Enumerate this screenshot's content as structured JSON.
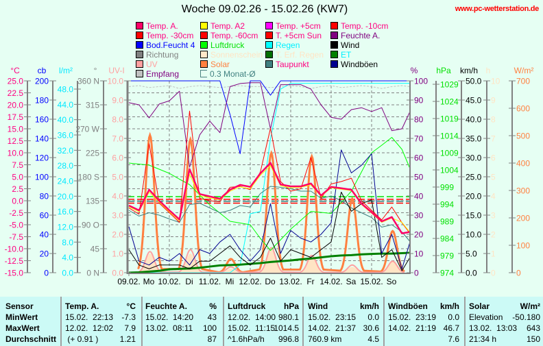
{
  "title": "Woche 09.02.26 - 15.02.26 (KW7)",
  "website": "www.pc-wetterstation.de",
  "legend": [
    {
      "label": "Temp. A.",
      "box": "#ff0066",
      "color": "#ff0080"
    },
    {
      "label": "Temp. A2",
      "box": "#ffff00",
      "color": "#ff0080"
    },
    {
      "label": "Temp. +5cm",
      "box": "#ff00ff",
      "color": "#ff0080"
    },
    {
      "label": "Temp. -10cm",
      "box": "#ff0000",
      "color": "#ff0080"
    },
    {
      "label": "Temp. -30cm",
      "box": "#ff0000",
      "color": "#ff0080"
    },
    {
      "label": "Temp. -60cm",
      "box": "#ff0000",
      "color": "#ff0080"
    },
    {
      "label": "T. +5cm Sun",
      "box": "#ff0000",
      "color": "#ff0080"
    },
    {
      "label": "Feuchte A.",
      "box": "#800080",
      "color": "#800080"
    },
    {
      "label": "Bod.Feucht 4",
      "box": "#0000ff",
      "color": "#0000ff"
    },
    {
      "label": "Luftdruck",
      "box": "#00ff00",
      "color": "#00e000"
    },
    {
      "label": "Regen",
      "box": "#00ffff",
      "color": "#00f0ff"
    },
    {
      "label": "Wind",
      "box": "#000000",
      "color": "#000000"
    },
    {
      "label": "Richtung",
      "box": "#808080",
      "color": "#808080"
    },
    {
      "label": "Sonnenschein",
      "box": "#ffe8c8",
      "color": "#ffe4c4"
    },
    {
      "label": "T. Erf. Regen",
      "box": "#007000",
      "color": "#ffe4c4"
    },
    {
      "label": "ET",
      "box": "#008000",
      "color": "#00f0ff"
    },
    {
      "label": "UV",
      "box": "#ffa0a0",
      "color": "#ffa0a0"
    },
    {
      "label": "Solar",
      "box": "#ff8040",
      "color": "#ff8040"
    },
    {
      "label": "Taupunkt",
      "box": "#408080",
      "color": "#ff0080"
    },
    {
      "label": "Windböen",
      "box": "#000090",
      "color": "#000000"
    },
    {
      "label": "Empfang",
      "box": "#c0c0c0",
      "color": "#800080"
    },
    {
      "label": "0.3 Monat-Ø",
      "box": "hollow",
      "color": "#408080"
    }
  ],
  "chart_data": {
    "type": "line",
    "title": "Woche 09.02.26 - 15.02.26 (KW7)",
    "x_range_hours": [
      0,
      168
    ],
    "x_step_hours": 6,
    "x_labels": [
      {
        "date": "09.02.",
        "day": "Mo"
      },
      {
        "date": "10.02.",
        "day": "Di"
      },
      {
        "date": "11.02.",
        "day": "Mi"
      },
      {
        "date": "12.02.",
        "day": "Do"
      },
      {
        "date": "13.02.",
        "day": "Fr"
      },
      {
        "date": "14.02.",
        "day": "Sa"
      },
      {
        "date": "15.02.",
        "day": "So"
      }
    ],
    "grid": true,
    "axes_left": [
      {
        "id": "temp",
        "unit": "°C",
        "color": "#ff0080",
        "range": [
          -15,
          25
        ],
        "ticks": [
          25,
          22.5,
          20,
          17.5,
          15,
          12.5,
          10,
          7.5,
          5,
          2.5,
          0,
          -2.5,
          -5,
          -7.5,
          -10,
          -12.5,
          -15
        ],
        "tick_labels": [
          "25.0",
          "22.5",
          "20.0",
          "17.5",
          "15.0",
          "12.5",
          "10.0",
          "7.5",
          "5.0",
          "2.5",
          "0.0",
          "-2.5",
          "-5.0",
          "-7.5",
          "-10.0",
          "-12.5",
          "-15.0"
        ]
      },
      {
        "id": "cb",
        "unit": "cb",
        "color": "#0000ff",
        "range": [
          0,
          200
        ],
        "ticks": [
          200,
          180,
          160,
          140,
          120,
          100,
          80,
          60,
          40,
          20,
          0
        ],
        "tick_labels": [
          "200",
          "180",
          "160",
          "140",
          "120",
          "100",
          "80",
          "60",
          "40",
          "20",
          "0"
        ]
      },
      {
        "id": "rain",
        "unit": "l/m²",
        "color": "#00e8ff",
        "range": [
          0,
          50.15
        ],
        "ticks": [
          48,
          44,
          40,
          36,
          32,
          28,
          24,
          20,
          16,
          12,
          8,
          4,
          0
        ],
        "tick_labels": [
          "48.0",
          "44.0",
          "40.0",
          "36.0",
          "32.0",
          "28.0",
          "24.0",
          "20.0",
          "16.0",
          "12.0",
          "8.0",
          "4.0",
          "0.0"
        ]
      },
      {
        "id": "dir",
        "unit": "°",
        "color": "#808080",
        "range": [
          0,
          360
        ],
        "ticks": [
          360,
          315,
          270,
          225,
          180,
          135,
          90,
          45,
          0
        ],
        "tick_labels": [
          "360 N",
          "315",
          "270 W",
          "225",
          "180 S",
          "135",
          "90  O",
          "45",
          "0   N"
        ]
      },
      {
        "id": "uv",
        "unit": "UV-I",
        "color": "#ffa0a0",
        "range": [
          0,
          10
        ],
        "ticks": [
          10,
          9,
          8,
          7,
          6,
          5,
          4,
          3,
          2,
          1,
          0
        ],
        "tick_labels": [
          "10.0",
          "9.0",
          "8.0",
          "7.0",
          "6.0",
          "5.0",
          "4.0",
          "3.0",
          "2.0",
          "1.0",
          "0.0"
        ]
      }
    ],
    "axes_right": [
      {
        "id": "hum",
        "unit": "%",
        "color": "#800080",
        "range": [
          0,
          100
        ],
        "ticks": [
          100,
          90,
          80,
          70,
          60,
          50,
          40,
          30,
          20,
          10,
          0
        ],
        "tick_labels": [
          "100",
          "90",
          "80",
          "70",
          "60",
          "50",
          "40",
          "30",
          "20",
          "10",
          "0"
        ]
      },
      {
        "id": "press",
        "unit": "hPa",
        "color": "#00e000",
        "range": [
          974,
          1030
        ],
        "ticks": [
          1029,
          1024,
          1019,
          1014,
          1009,
          1004,
          999,
          994,
          989,
          984,
          979,
          974
        ],
        "tick_labels": [
          "1029",
          "1024",
          "1019",
          "1014",
          "1009",
          "1004",
          "999",
          "994",
          "989",
          "984",
          "979",
          "974"
        ]
      },
      {
        "id": "wind",
        "unit": "km/h",
        "color": "#000000",
        "range": [
          0,
          50
        ],
        "ticks": [
          50,
          45,
          40,
          35,
          30,
          25,
          20,
          15,
          10,
          5,
          0
        ],
        "tick_labels": [
          "50.0",
          "45.0",
          "40.0",
          "35.0",
          "30.0",
          "25.0",
          "20.0",
          "15.0",
          "10.0",
          "5.0",
          "0.0"
        ]
      },
      {
        "id": "sun",
        "unit": "h",
        "color": "#ffe4c4",
        "range": [
          0,
          10
        ],
        "ticks": [
          10,
          9,
          8,
          7,
          6,
          5,
          4,
          3,
          2,
          1,
          0
        ],
        "tick_labels": [
          "10",
          "9",
          "8",
          "7",
          "6",
          "5",
          "4",
          "3",
          "2",
          "1",
          "0"
        ]
      },
      {
        "id": "solar",
        "unit": "W/m²",
        "color": "#ff8040",
        "range": [
          0,
          700
        ],
        "ticks": [
          700,
          600,
          500,
          400,
          300,
          200,
          100,
          0
        ],
        "tick_labels": [
          "700",
          "600",
          "500",
          "400",
          "300",
          "200",
          "100",
          "0"
        ]
      }
    ],
    "series": [
      {
        "name": "Empfang",
        "axis": "hum",
        "color": "#c0c0c0",
        "width": 1,
        "dash": "3,2",
        "values": [
          97,
          97.5,
          96.5,
          97,
          97.5,
          96,
          97,
          97.5,
          97,
          96.5,
          97,
          97.5,
          97,
          97,
          96.5,
          97,
          97.5,
          97,
          96,
          97,
          97.5,
          96.5,
          97,
          97.5,
          97,
          96,
          97,
          97.5,
          97
        ]
      },
      {
        "name": "Regen",
        "axis": "rain",
        "color": "#00ffff",
        "width": 1,
        "values": [
          0,
          0,
          0,
          0,
          0,
          0,
          0,
          0,
          0,
          0,
          0,
          2,
          15.4,
          16,
          35,
          48,
          49.5,
          49.5,
          49.5,
          49.5,
          49.5,
          49.5,
          49.5,
          49.5,
          49.5,
          49.5,
          49.5,
          49.5,
          49.5
        ]
      },
      {
        "name": "ET",
        "axis": "rain",
        "color": "#008000",
        "width": 3,
        "values": [
          0,
          0.1,
          0.3,
          0.5,
          0.9,
          1.0,
          1.1,
          1.3,
          1.6,
          1.9,
          2.0,
          2.1,
          2.3,
          2.5,
          2.8,
          3.0,
          3.2,
          3.5,
          3.7,
          4.0,
          4.3,
          4.5,
          4.6,
          4.8,
          4.9,
          5.0,
          5.0,
          5.1,
          5.2
        ]
      },
      {
        "name": "Luftdruck",
        "axis": "press",
        "color": "#00ff00",
        "width": 1,
        "values": [
          1006,
          1005.7,
          1005.4,
          1004.2,
          1003,
          1001.3,
          999.7,
          996.7,
          993.8,
          991.4,
          989,
          988.5,
          988,
          984,
          980.5,
          983.6,
          986.7,
          989.3,
          991.9,
          991.6,
          991.3,
          994.5,
          997.8,
          1003.4,
          1009,
          1011.2,
          1013.5,
          1010,
          1004.4
        ]
      },
      {
        "name": "Bod.Feucht 4",
        "axis": "cb",
        "color": "#0000ff",
        "width": 1,
        "values": [
          200,
          200,
          200,
          200,
          200,
          200,
          200,
          200,
          200,
          200,
          165,
          124,
          200,
          200,
          185,
          200,
          200,
          200,
          200,
          200,
          200,
          200,
          200,
          200,
          200,
          200,
          200,
          200,
          200
        ]
      },
      {
        "name": "Feuchte A.",
        "axis": "hum",
        "color": "#800080",
        "width": 1,
        "values": [
          88.6,
          87.5,
          80.7,
          87.9,
          89.6,
          94.6,
          55,
          71.8,
          79,
          73,
          97,
          98.6,
          99,
          99,
          75,
          98,
          98,
          98,
          95.7,
          87.5,
          81,
          80,
          85,
          86,
          84,
          86,
          74,
          75,
          84
        ]
      },
      {
        "name": "Taupunkt",
        "axis": "temp",
        "color": "#408080",
        "width": 1,
        "values": [
          -2.0,
          -3.2,
          -2.5,
          -3.0,
          -3.8,
          -4.5,
          -0.8,
          -0.5,
          -1.5,
          -2.5,
          -2.0,
          -1.0,
          -1.3,
          1.5,
          3.0,
          2.8,
          2.5,
          2.0,
          2.0,
          0.5,
          1.0,
          0.0,
          -1.5,
          -2.5,
          -3.5,
          -5.5,
          -5.0,
          -6.5,
          -8.5
        ]
      },
      {
        "name": "Wind",
        "axis": "wind",
        "color": "#000000",
        "width": 1,
        "values": [
          6,
          2,
          1,
          2,
          2,
          2,
          1,
          3,
          3,
          5,
          7,
          4,
          2,
          4,
          9,
          3,
          6,
          5,
          4,
          6,
          8,
          21,
          16,
          18,
          19,
          4,
          6,
          0.5,
          4
        ]
      },
      {
        "name": "Windböen",
        "axis": "wind",
        "color": "#000090",
        "width": 1,
        "values": [
          12,
          3,
          2,
          4,
          3,
          5,
          2,
          6,
          5,
          8,
          10,
          6,
          3,
          6,
          18,
          5,
          11,
          9,
          8,
          10,
          13,
          32,
          26,
          28,
          31,
          5,
          10,
          1,
          8
        ]
      },
      {
        "name": "T. +5cm Sun",
        "axis": "temp",
        "color": "#ff0000",
        "width": 1,
        "values": [
          -1.5,
          -2.8,
          11.9,
          -0.5,
          -2.5,
          -4.5,
          18.7,
          0.5,
          0.0,
          -0.2,
          2.8,
          3.0,
          2.3,
          6.0,
          15.1,
          4.0,
          2.0,
          2.5,
          9.0,
          0.5,
          3.5,
          4.0,
          4.7,
          0.0,
          -2.0,
          -4.0,
          -1.3,
          -4.6,
          -6.8
        ]
      },
      {
        "name": "Temp. A2",
        "axis": "temp",
        "color": "#ffff00",
        "width": 1,
        "values": [
          -1.3,
          -2.3,
          1.8,
          -0.3,
          -2.3,
          -4.2,
          5.5,
          1.0,
          0.6,
          0.2,
          2.0,
          2.9,
          2.5,
          5.3,
          7.3,
          3.1,
          2.7,
          2.8,
          3.3,
          0.9,
          2.7,
          2.4,
          2.1,
          -0.8,
          -2.6,
          -4.5,
          -3.6,
          -4.5,
          -6.6
        ]
      },
      {
        "name": "Temp. A.",
        "axis": "temp",
        "color": "#ff0066",
        "width": 2.5,
        "values": [
          -1.0,
          -2.0,
          2.3,
          0.0,
          -2.0,
          -3.9,
          6.6,
          1.4,
          0.9,
          0.4,
          2.3,
          3.3,
          2.9,
          5.7,
          7.9,
          3.4,
          3.0,
          3.0,
          3.6,
          1.1,
          2.9,
          2.6,
          2.3,
          -0.6,
          -2.4,
          -4.3,
          -3.4,
          -6.8,
          -6.5
        ]
      }
    ],
    "daily_peaks": [
      {
        "name": "Sonnenschein",
        "axis": "sun",
        "color": "#ffe4c4",
        "fill": true,
        "values": [
          1.0,
          1.0,
          0.2,
          1.2,
          0.8,
          0.3,
          0.6
        ]
      },
      {
        "name": "Solar",
        "axis": "solar",
        "color": "#ff8040",
        "fill": false,
        "values": [
          502,
          487,
          50,
          437,
          425,
          270,
          152
        ]
      },
      {
        "name": "UV",
        "axis": "uv",
        "color": "#ffa0a0",
        "fill": false,
        "values": [
          1.1,
          1.2,
          0.3,
          1.3,
          0.9,
          0.4,
          0.6
        ]
      }
    ],
    "monthly_avg": [
      {
        "name": "Luftdruck",
        "axis": "press",
        "color": "#00e000",
        "value": 996.2
      },
      {
        "name": "Temp. A.",
        "axis": "temp",
        "color": "#ff0000",
        "value": 0.3
      },
      {
        "name": "Taupunkt",
        "axis": "temp",
        "color": "#408080",
        "value": -0.1
      },
      {
        "name": "T. +5cm Sun",
        "axis": "temp",
        "color": "#ff0000",
        "value": -0.5
      }
    ]
  },
  "table": {
    "headers": [
      "Sensor",
      "Temp. A.",
      "°C",
      "Feuchte A.",
      "%",
      "Luftdruck",
      "hPa",
      "Wind",
      "km/h",
      "Windböen",
      "km/h",
      "Solar",
      "W/m²"
    ],
    "rows": [
      [
        "MinWert",
        "15.02.  22:13",
        "-7.3",
        "15.02.  14:20",
        "43",
        "12.02.  14:00",
        "980.1",
        "15.02.  23:15",
        "0.0",
        "15.02.  23:19",
        "0.0",
        "Elevation",
        "-50.180"
      ],
      [
        "MaxWert",
        "12.02.  12:02",
        "7.9",
        "13.02.  08:11",
        "100",
        "15.02.  11:15",
        "1014.5",
        "14.02.  21:37",
        "30.6",
        "14.02.  21:19",
        "46.7",
        "13.02.  13:03",
        "643"
      ],
      [
        "Durchschnitt",
        " (+ 0.91 )",
        "1.21",
        "",
        "87",
        "^1.6hPa/h",
        "996.8",
        "760.9 km",
        "4.5",
        "",
        "7.6",
        "21:34 h",
        "150"
      ]
    ]
  }
}
